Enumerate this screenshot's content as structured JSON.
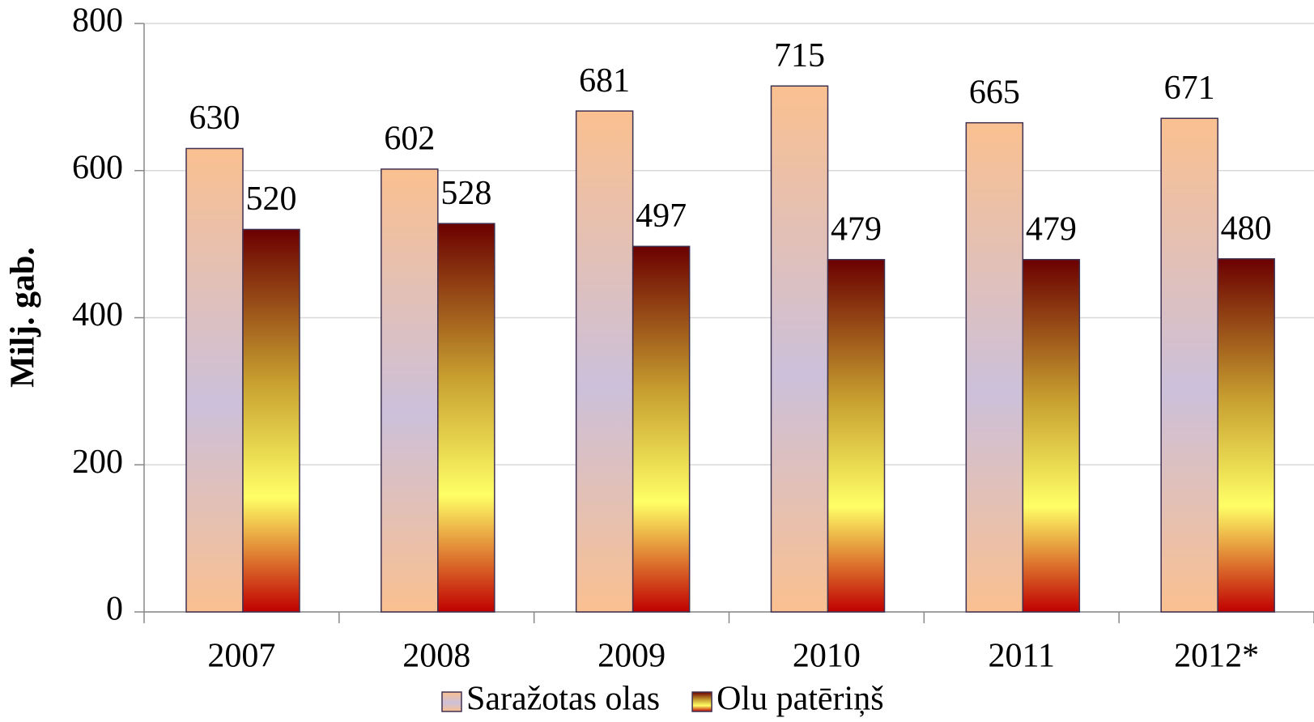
{
  "chart_data": {
    "type": "bar",
    "y_label": "Milj. gab.",
    "categories": [
      "2007",
      "2008",
      "2009",
      "2010",
      "2011",
      "2012*"
    ],
    "series": [
      {
        "name": "Saražotas olas",
        "color": "#fac090",
        "values": [
          630,
          602,
          681,
          715,
          665,
          671
        ]
      },
      {
        "name": "Olu patēriņš",
        "color": "#c00000",
        "values": [
          520,
          528,
          497,
          479,
          479,
          480
        ]
      }
    ],
    "ylim": [
      0,
      800
    ],
    "yticks": [
      0,
      200,
      400,
      600,
      800
    ],
    "grid": true,
    "legend": "bottom"
  }
}
